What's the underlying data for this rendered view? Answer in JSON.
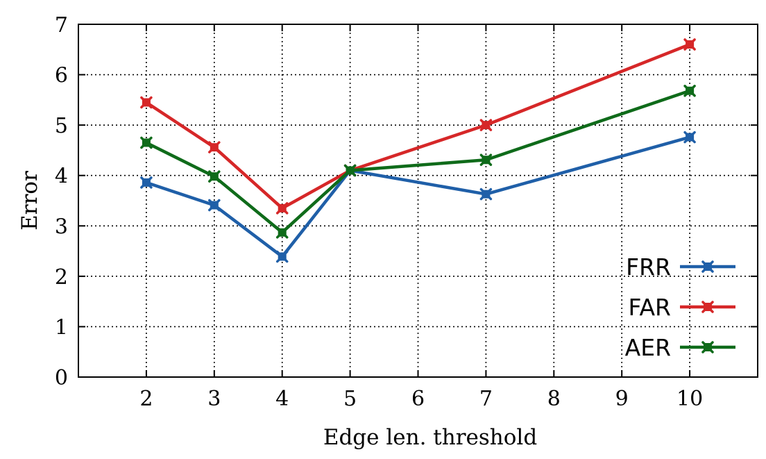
{
  "chart_data": {
    "type": "line",
    "xlabel": "Edge len. threshold",
    "ylabel": "Error",
    "xlim": [
      1,
      11
    ],
    "ylim": [
      0,
      7
    ],
    "xticks": [
      2,
      3,
      4,
      5,
      6,
      7,
      8,
      9,
      10
    ],
    "yticks": [
      0,
      1,
      2,
      3,
      4,
      5,
      6,
      7
    ],
    "grid": true,
    "legend_position": "bottom-right",
    "x": [
      2,
      3,
      4,
      5,
      7,
      10
    ],
    "series": [
      {
        "name": "FRR",
        "color": "#1f5fa8",
        "values": [
          3.86,
          3.41,
          2.39,
          4.1,
          3.63,
          4.76
        ]
      },
      {
        "name": "FAR",
        "color": "#d62728",
        "values": [
          5.45,
          4.56,
          3.35,
          4.1,
          5.0,
          6.6
        ]
      },
      {
        "name": "AER",
        "color": "#0f6b1a",
        "values": [
          4.65,
          3.98,
          2.87,
          4.1,
          4.31,
          5.68
        ]
      }
    ]
  }
}
